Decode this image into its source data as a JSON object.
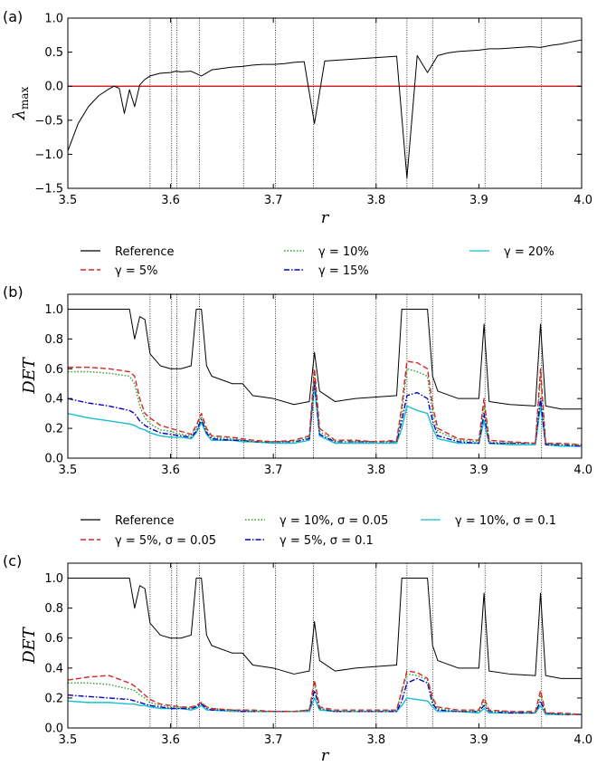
{
  "chart_data": [
    {
      "type": "line",
      "panel_label": "(a)",
      "xlabel": "r",
      "ylabel": "λmax",
      "xlim": [
        3.5,
        4.0
      ],
      "ylim": [
        -1.5,
        1.0
      ],
      "xticks": [
        "3.5",
        "3.6",
        "3.7",
        "3.8",
        "3.9",
        "4.0"
      ],
      "yticks": [
        "−1.5",
        "−1.0",
        "−0.5",
        "0.0",
        "0.5",
        "1.0"
      ],
      "reference_line": {
        "y": 0.0,
        "color": "#d62728"
      },
      "vlines": [
        3.58,
        3.601,
        3.606,
        3.628,
        3.671,
        3.702,
        3.739,
        3.8,
        3.83,
        3.855,
        3.906,
        3.961
      ],
      "series": [
        {
          "key": "ref",
          "color": "#000000",
          "x": [
            3.5,
            3.51,
            3.52,
            3.53,
            3.54,
            3.545,
            3.55,
            3.555,
            3.56,
            3.565,
            3.57,
            3.575,
            3.58,
            3.585,
            3.59,
            3.6,
            3.605,
            3.61,
            3.62,
            3.63,
            3.64,
            3.65,
            3.66,
            3.67,
            3.68,
            3.69,
            3.7,
            3.71,
            3.72,
            3.73,
            3.74,
            3.75,
            3.76,
            3.77,
            3.78,
            3.79,
            3.8,
            3.81,
            3.82,
            3.83,
            3.84,
            3.85,
            3.86,
            3.87,
            3.88,
            3.89,
            3.9,
            3.91,
            3.92,
            3.93,
            3.94,
            3.95,
            3.96,
            3.97,
            3.98,
            3.99,
            4.0
          ],
          "y": [
            -0.95,
            -0.55,
            -0.3,
            -0.14,
            -0.04,
            0.0,
            -0.03,
            -0.4,
            -0.05,
            -0.3,
            0.02,
            0.1,
            0.15,
            0.17,
            0.19,
            0.2,
            0.22,
            0.21,
            0.22,
            0.15,
            0.24,
            0.26,
            0.28,
            0.29,
            0.31,
            0.32,
            0.32,
            0.33,
            0.35,
            0.36,
            -0.55,
            0.37,
            0.38,
            0.39,
            0.4,
            0.41,
            0.42,
            0.43,
            0.44,
            -1.35,
            0.45,
            0.2,
            0.45,
            0.49,
            0.51,
            0.52,
            0.53,
            0.55,
            0.55,
            0.56,
            0.57,
            0.58,
            0.57,
            0.6,
            0.62,
            0.65,
            0.68
          ]
        }
      ]
    },
    {
      "type": "line",
      "panel_label": "(b)",
      "xlabel": "r",
      "ylabel": "DET",
      "xlim": [
        3.5,
        4.0
      ],
      "ylim": [
        0.0,
        1.1
      ],
      "xticks": [
        "3.5",
        "3.6",
        "3.7",
        "3.8",
        "3.9",
        "4.0"
      ],
      "yticks": [
        "0.0",
        "0.2",
        "0.4",
        "0.6",
        "0.8",
        "1.0"
      ],
      "vlines": [
        3.58,
        3.601,
        3.606,
        3.628,
        3.671,
        3.702,
        3.739,
        3.8,
        3.83,
        3.855,
        3.906,
        3.961
      ],
      "legend": [
        "Reference",
        "γ = 5%",
        "γ = 10%",
        "γ = 15%",
        "γ = 20%"
      ],
      "legend_position": "top, outside",
      "x": [
        3.5,
        3.52,
        3.54,
        3.56,
        3.565,
        3.57,
        3.575,
        3.58,
        3.59,
        3.6,
        3.61,
        3.62,
        3.625,
        3.63,
        3.635,
        3.64,
        3.66,
        3.67,
        3.68,
        3.7,
        3.72,
        3.735,
        3.74,
        3.745,
        3.76,
        3.78,
        3.8,
        3.82,
        3.825,
        3.83,
        3.84,
        3.85,
        3.855,
        3.86,
        3.88,
        3.9,
        3.905,
        3.91,
        3.93,
        3.955,
        3.96,
        3.965,
        3.98,
        4.0
      ],
      "series": [
        {
          "key": "ref",
          "color": "#000000",
          "values": [
            1.0,
            1.0,
            1.0,
            1.0,
            0.8,
            0.95,
            0.93,
            0.7,
            0.62,
            0.6,
            0.6,
            0.62,
            1.0,
            1.0,
            0.62,
            0.55,
            0.5,
            0.5,
            0.42,
            0.4,
            0.36,
            0.38,
            0.71,
            0.45,
            0.38,
            0.4,
            0.41,
            0.42,
            1.0,
            1.0,
            1.0,
            1.0,
            0.55,
            0.45,
            0.4,
            0.4,
            0.9,
            0.38,
            0.36,
            0.35,
            0.9,
            0.35,
            0.33,
            0.33
          ]
        },
        {
          "key": "g5",
          "color": "#d62728",
          "values": [
            0.61,
            0.61,
            0.6,
            0.58,
            0.55,
            0.4,
            0.3,
            0.27,
            0.22,
            0.2,
            0.18,
            0.16,
            0.22,
            0.3,
            0.2,
            0.15,
            0.14,
            0.13,
            0.12,
            0.11,
            0.12,
            0.15,
            0.6,
            0.2,
            0.12,
            0.12,
            0.11,
            0.12,
            0.35,
            0.65,
            0.64,
            0.6,
            0.35,
            0.2,
            0.13,
            0.12,
            0.4,
            0.12,
            0.11,
            0.1,
            0.6,
            0.1,
            0.1,
            0.09
          ]
        },
        {
          "key": "g10",
          "color": "#2ca02c",
          "values": [
            0.58,
            0.58,
            0.57,
            0.55,
            0.5,
            0.35,
            0.27,
            0.23,
            0.19,
            0.18,
            0.16,
            0.15,
            0.2,
            0.28,
            0.18,
            0.14,
            0.13,
            0.12,
            0.11,
            0.11,
            0.11,
            0.14,
            0.57,
            0.18,
            0.11,
            0.11,
            0.11,
            0.11,
            0.3,
            0.6,
            0.58,
            0.55,
            0.3,
            0.18,
            0.12,
            0.11,
            0.35,
            0.11,
            0.1,
            0.1,
            0.55,
            0.1,
            0.09,
            0.09
          ]
        },
        {
          "key": "g15",
          "color": "#0000cc",
          "values": [
            0.4,
            0.37,
            0.35,
            0.32,
            0.3,
            0.25,
            0.22,
            0.2,
            0.17,
            0.16,
            0.15,
            0.14,
            0.18,
            0.26,
            0.17,
            0.13,
            0.12,
            0.12,
            0.11,
            0.11,
            0.11,
            0.13,
            0.52,
            0.16,
            0.11,
            0.11,
            0.11,
            0.11,
            0.25,
            0.42,
            0.44,
            0.4,
            0.25,
            0.15,
            0.11,
            0.1,
            0.3,
            0.1,
            0.1,
            0.1,
            0.4,
            0.09,
            0.09,
            0.08
          ]
        },
        {
          "key": "g20",
          "color": "#17becf",
          "values": [
            0.3,
            0.27,
            0.25,
            0.23,
            0.22,
            0.2,
            0.19,
            0.17,
            0.15,
            0.14,
            0.14,
            0.13,
            0.17,
            0.24,
            0.16,
            0.12,
            0.12,
            0.11,
            0.11,
            0.1,
            0.1,
            0.12,
            0.48,
            0.15,
            0.1,
            0.1,
            0.1,
            0.1,
            0.2,
            0.35,
            0.32,
            0.3,
            0.2,
            0.13,
            0.1,
            0.1,
            0.25,
            0.1,
            0.09,
            0.09,
            0.35,
            0.09,
            0.08,
            0.08
          ]
        }
      ]
    },
    {
      "type": "line",
      "panel_label": "(c)",
      "xlabel": "r",
      "ylabel": "DET",
      "xlim": [
        3.5,
        4.0
      ],
      "ylim": [
        0.0,
        1.1
      ],
      "xticks": [
        "3.5",
        "3.6",
        "3.7",
        "3.8",
        "3.9",
        "4.0"
      ],
      "yticks": [
        "0.0",
        "0.2",
        "0.4",
        "0.6",
        "0.8",
        "1.0"
      ],
      "vlines": [
        3.58,
        3.601,
        3.606,
        3.628,
        3.671,
        3.702,
        3.739,
        3.8,
        3.83,
        3.855,
        3.906,
        3.961
      ],
      "legend": [
        "Reference",
        "γ = 5%, σ = 0.05",
        "γ = 10%, σ = 0.05",
        "γ = 5%, σ = 0.1",
        "γ = 10%, σ = 0.1"
      ],
      "legend_position": "top, outside",
      "x": [
        3.5,
        3.52,
        3.54,
        3.56,
        3.565,
        3.57,
        3.575,
        3.58,
        3.59,
        3.6,
        3.61,
        3.62,
        3.625,
        3.63,
        3.635,
        3.64,
        3.66,
        3.67,
        3.68,
        3.7,
        3.72,
        3.735,
        3.74,
        3.745,
        3.76,
        3.78,
        3.8,
        3.82,
        3.825,
        3.83,
        3.84,
        3.85,
        3.855,
        3.86,
        3.88,
        3.9,
        3.905,
        3.91,
        3.93,
        3.955,
        3.96,
        3.965,
        3.98,
        4.0
      ],
      "series": [
        {
          "key": "ref",
          "color": "#000000",
          "values": [
            1.0,
            1.0,
            1.0,
            1.0,
            0.8,
            0.95,
            0.93,
            0.7,
            0.62,
            0.6,
            0.6,
            0.62,
            1.0,
            1.0,
            0.62,
            0.55,
            0.5,
            0.5,
            0.42,
            0.4,
            0.36,
            0.38,
            0.71,
            0.45,
            0.38,
            0.4,
            0.41,
            0.42,
            1.0,
            1.0,
            1.0,
            1.0,
            0.55,
            0.45,
            0.4,
            0.4,
            0.9,
            0.38,
            0.36,
            0.35,
            0.9,
            0.35,
            0.33,
            0.33
          ]
        },
        {
          "key": "g5s05",
          "color": "#d62728",
          "values": [
            0.32,
            0.34,
            0.35,
            0.3,
            0.28,
            0.25,
            0.22,
            0.19,
            0.16,
            0.15,
            0.14,
            0.14,
            0.15,
            0.17,
            0.14,
            0.13,
            0.12,
            0.12,
            0.12,
            0.11,
            0.11,
            0.12,
            0.32,
            0.14,
            0.12,
            0.12,
            0.12,
            0.12,
            0.25,
            0.38,
            0.37,
            0.33,
            0.2,
            0.14,
            0.12,
            0.12,
            0.2,
            0.12,
            0.11,
            0.11,
            0.25,
            0.1,
            0.1,
            0.09
          ]
        },
        {
          "key": "g10s05",
          "color": "#2ca02c",
          "values": [
            0.3,
            0.3,
            0.29,
            0.26,
            0.25,
            0.22,
            0.2,
            0.17,
            0.15,
            0.14,
            0.14,
            0.13,
            0.15,
            0.17,
            0.14,
            0.13,
            0.12,
            0.12,
            0.11,
            0.11,
            0.11,
            0.12,
            0.3,
            0.13,
            0.11,
            0.11,
            0.11,
            0.12,
            0.24,
            0.36,
            0.35,
            0.32,
            0.18,
            0.13,
            0.11,
            0.11,
            0.18,
            0.11,
            0.11,
            0.1,
            0.22,
            0.1,
            0.09,
            0.09
          ]
        },
        {
          "key": "g5s1",
          "color": "#0000cc",
          "values": [
            0.22,
            0.21,
            0.2,
            0.19,
            0.18,
            0.17,
            0.16,
            0.15,
            0.14,
            0.13,
            0.13,
            0.13,
            0.14,
            0.16,
            0.13,
            0.12,
            0.12,
            0.11,
            0.11,
            0.11,
            0.11,
            0.12,
            0.25,
            0.13,
            0.11,
            0.11,
            0.11,
            0.11,
            0.18,
            0.3,
            0.33,
            0.3,
            0.16,
            0.12,
            0.11,
            0.11,
            0.15,
            0.11,
            0.1,
            0.1,
            0.18,
            0.1,
            0.09,
            0.09
          ]
        },
        {
          "key": "g10s1",
          "color": "#17becf",
          "values": [
            0.18,
            0.17,
            0.17,
            0.16,
            0.16,
            0.15,
            0.15,
            0.14,
            0.13,
            0.13,
            0.13,
            0.12,
            0.13,
            0.15,
            0.12,
            0.12,
            0.11,
            0.11,
            0.11,
            0.11,
            0.11,
            0.11,
            0.2,
            0.12,
            0.11,
            0.11,
            0.11,
            0.11,
            0.15,
            0.2,
            0.19,
            0.18,
            0.14,
            0.11,
            0.11,
            0.1,
            0.13,
            0.1,
            0.1,
            0.1,
            0.15,
            0.09,
            0.09,
            0.09
          ]
        }
      ]
    }
  ]
}
